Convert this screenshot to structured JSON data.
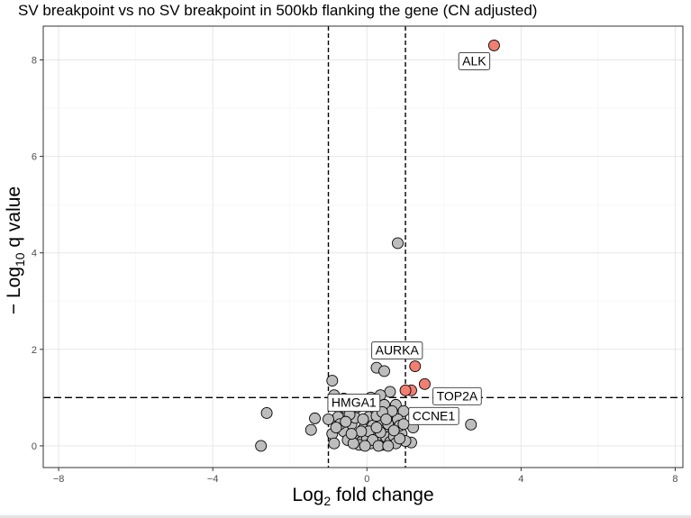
{
  "chart_data": {
    "type": "scatter",
    "title": "SV breakpoint vs no SV breakpoint in 500kb flanking the gene (CN adjusted)",
    "xlabel": {
      "base": "Log",
      "sub": "2",
      "rest": " fold change"
    },
    "ylabel": {
      "prefix": "− Log",
      "sub": "10",
      "rest": " q value"
    },
    "xlim": [
      -8.4,
      8.2
    ],
    "ylim": [
      -0.45,
      8.7
    ],
    "xticks": [
      -8,
      -4,
      0,
      4,
      8
    ],
    "yticks": [
      0,
      2,
      4,
      6,
      8
    ],
    "xtick_labels": [
      "−8",
      "−4",
      "0",
      "4",
      "8"
    ],
    "ytick_labels": [
      "0",
      "2",
      "4",
      "6",
      "8"
    ],
    "grid": true,
    "legend": "none",
    "thresholds": {
      "fold_change": [
        -1,
        1
      ],
      "neg_log10_q": 1
    },
    "colors": {
      "significant": "#f07f72",
      "nonsignificant": "#bdbdbd",
      "outline": "#000000"
    },
    "labeled_points": [
      {
        "label": "ALK",
        "x": 3.3,
        "y": 8.3
      },
      {
        "label": "AURKA",
        "x": 1.25,
        "y": 1.65
      },
      {
        "label": "TOP2A",
        "x": 1.5,
        "y": 1.28
      },
      {
        "label": "HMGA1",
        "x": 0.2,
        "y": 1.35
      },
      {
        "label": "CCNE1",
        "x": 1.15,
        "y": 1.15
      }
    ],
    "series": [
      {
        "group": "significant",
        "points": [
          [
            3.3,
            8.3
          ],
          [
            1.25,
            1.65
          ],
          [
            1.5,
            1.28
          ],
          [
            1.15,
            1.15
          ],
          [
            1.0,
            1.15
          ]
        ]
      },
      {
        "group": "nonsignificant",
        "points": [
          [
            0.8,
            4.2
          ],
          [
            -2.6,
            0.68
          ],
          [
            -2.75,
            0.0
          ],
          [
            2.7,
            0.44
          ],
          [
            -0.9,
            1.35
          ],
          [
            -0.85,
            1.05
          ],
          [
            0.25,
            1.62
          ],
          [
            0.45,
            1.55
          ],
          [
            0.6,
            1.12
          ],
          [
            0.35,
            1.05
          ],
          [
            0.1,
            1.0
          ],
          [
            -0.6,
            0.98
          ],
          [
            0.75,
            0.85
          ],
          [
            0.95,
            0.72
          ],
          [
            1.25,
            0.55
          ],
          [
            1.2,
            0.38
          ],
          [
            1.15,
            0.07
          ],
          [
            -0.2,
            0.92
          ],
          [
            -0.55,
            0.78
          ],
          [
            -0.75,
            0.6
          ],
          [
            -1.35,
            0.57
          ],
          [
            -1.45,
            0.33
          ],
          [
            -1.0,
            0.55
          ],
          [
            -0.9,
            0.25
          ],
          [
            -0.85,
            0.05
          ],
          [
            -0.4,
            0.45
          ],
          [
            -0.3,
            0.58
          ],
          [
            -0.1,
            0.35
          ],
          [
            0.05,
            0.6
          ],
          [
            0.2,
            0.78
          ],
          [
            0.3,
            0.5
          ],
          [
            0.45,
            0.32
          ],
          [
            0.55,
            0.65
          ],
          [
            0.65,
            0.4
          ],
          [
            0.8,
            0.55
          ],
          [
            0.9,
            0.25
          ],
          [
            1.0,
            0.1
          ],
          [
            0.85,
            0.42
          ],
          [
            -0.6,
            0.3
          ],
          [
            -0.5,
            0.12
          ],
          [
            -0.3,
            0.2
          ],
          [
            -0.15,
            0.08
          ],
          [
            0.0,
            0.15
          ],
          [
            0.1,
            0.05
          ],
          [
            0.2,
            0.25
          ],
          [
            0.3,
            0.1
          ],
          [
            0.4,
            0.02
          ],
          [
            0.5,
            0.18
          ],
          [
            0.6,
            0.08
          ],
          [
            0.7,
            0.2
          ],
          [
            -0.7,
            0.45
          ],
          [
            -0.45,
            0.65
          ],
          [
            -0.25,
            0.8
          ],
          [
            0.15,
            0.42
          ],
          [
            0.35,
            0.28
          ],
          [
            0.55,
            0.45
          ],
          [
            0.75,
            0.05
          ],
          [
            -0.1,
            0.55
          ],
          [
            0.25,
            0.62
          ],
          [
            0.05,
            0.3
          ],
          [
            -0.2,
            0.02
          ],
          [
            0.45,
            0.85
          ],
          [
            0.65,
            0.72
          ],
          [
            -0.35,
            0.05
          ],
          [
            0.85,
            0.15
          ],
          [
            0.15,
            0.12
          ],
          [
            -0.05,
            0.0
          ],
          [
            0.3,
            0.0
          ],
          [
            0.55,
            0.0
          ],
          [
            -0.55,
            0.5
          ],
          [
            -0.8,
            0.38
          ],
          [
            0.4,
            0.7
          ],
          [
            0.95,
            0.45
          ],
          [
            0.7,
            0.32
          ],
          [
            -0.15,
            0.3
          ],
          [
            0.1,
            0.85
          ],
          [
            -0.4,
            0.25
          ],
          [
            0.25,
            0.38
          ],
          [
            0.5,
            0.55
          ]
        ]
      }
    ]
  }
}
